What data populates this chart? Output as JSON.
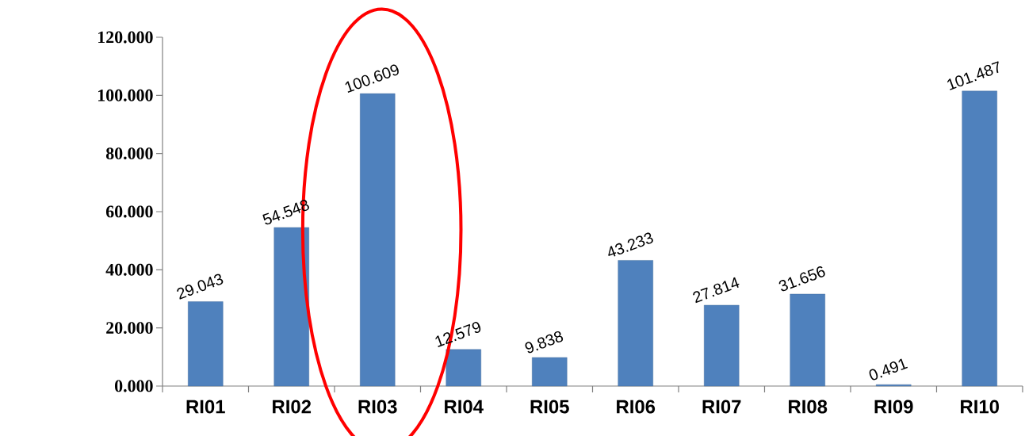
{
  "chart_data": {
    "type": "bar",
    "categories": [
      "RI01",
      "RI02",
      "RI03",
      "RI04",
      "RI05",
      "RI06",
      "RI07",
      "RI08",
      "RI09",
      "RI10"
    ],
    "values": [
      29.043,
      54.548,
      100.609,
      12.579,
      9.838,
      43.233,
      27.814,
      31.656,
      0.491,
      101.487
    ],
    "color": "#4f81bd",
    "data_labels": true,
    "grid": false,
    "ylim": [
      0,
      120
    ],
    "yticks": [
      {
        "value": 0,
        "label": "0.000"
      },
      {
        "value": 20,
        "label": "20.000"
      },
      {
        "value": 40,
        "label": "40.000"
      },
      {
        "value": 60,
        "label": "60.000"
      },
      {
        "value": 80,
        "label": "80.000"
      },
      {
        "value": 100,
        "label": "100.000"
      },
      {
        "value": 120,
        "label": "120.000"
      }
    ]
  }
}
